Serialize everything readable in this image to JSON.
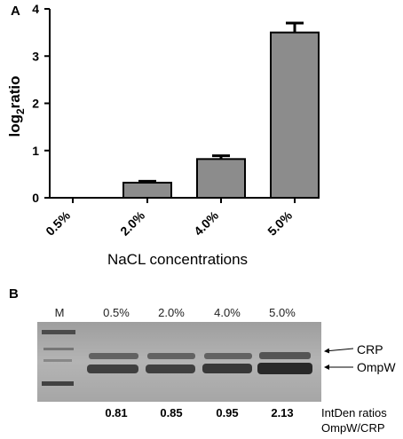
{
  "panel_a_label": "A",
  "panel_b_label": "B",
  "chart_data": {
    "type": "bar",
    "categories": [
      "0.5%",
      "2.0%",
      "4.0%",
      "5.0%"
    ],
    "values": [
      0.0,
      0.32,
      0.82,
      3.5
    ],
    "errors": [
      0.0,
      0.03,
      0.07,
      0.2
    ],
    "ylabel_main": "log",
    "ylabel_sub": "2",
    "ylabel_tail": "ratio",
    "xlabel": "NaCL concentrations",
    "ylim": [
      0,
      4
    ],
    "yticks": [
      "0",
      "1",
      "2",
      "3",
      "4"
    ],
    "bar_color": "#8c8c8c",
    "grid": false
  },
  "blot": {
    "marker_label": "M",
    "lane_labels": [
      "0.5%",
      "2.0%",
      "4.0%",
      "5.0%"
    ],
    "band_labels": [
      "CRP",
      "OmpW"
    ],
    "ratio_values": [
      "0.81",
      "0.85",
      "0.95",
      "2.13"
    ],
    "ratio_caption_line1": "IntDen ratios",
    "ratio_caption_line2": "OmpW/CRP"
  }
}
